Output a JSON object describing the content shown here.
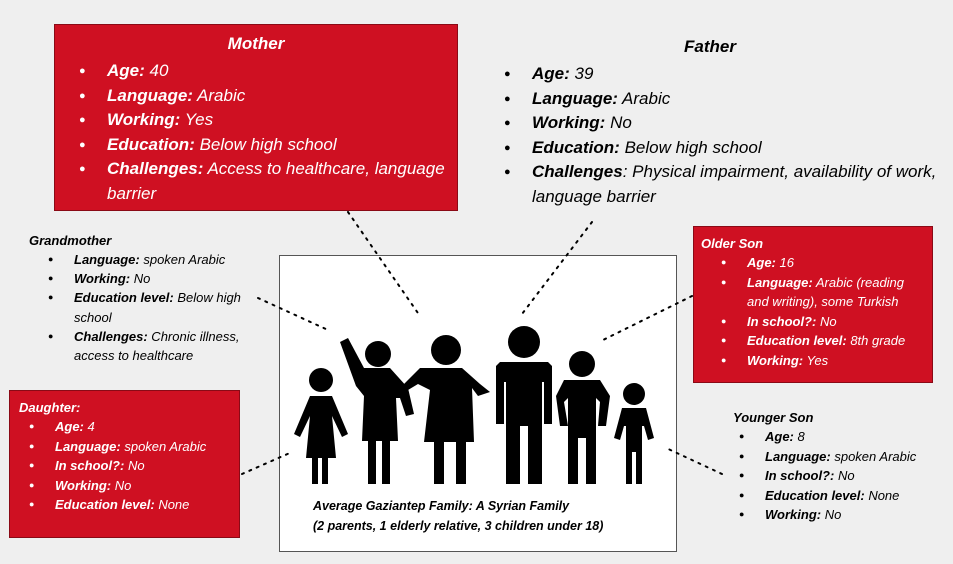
{
  "mother": {
    "title": "Mother",
    "items": [
      {
        "label": "Age:",
        "value": " 40"
      },
      {
        "label": "Language:",
        "value": " Arabic"
      },
      {
        "label": "Working:",
        "value": " Yes"
      },
      {
        "label": "Education:",
        "value": " Below high school"
      },
      {
        "label": "Challenges:",
        "value": " Access to healthcare, language barrier"
      }
    ]
  },
  "father": {
    "title": "Father",
    "items": [
      {
        "label": "Age:",
        "value": " 39"
      },
      {
        "label": "Language:",
        "value": " Arabic"
      },
      {
        "label": "Working:",
        "value": " No"
      },
      {
        "label": "Education:",
        "value": " Below high school"
      },
      {
        "label": "Challenges",
        "value": ": Physical impairment, availability of work, language barrier"
      }
    ]
  },
  "grandmother": {
    "title": "Grandmother",
    "items": [
      {
        "label": "Language:",
        "value": " spoken Arabic"
      },
      {
        "label": "Working:",
        "value": " No"
      },
      {
        "label": "Education level:",
        "value": " Below high school"
      },
      {
        "label": "Challenges:",
        "value": " Chronic illness, access to healthcare"
      }
    ]
  },
  "older_son": {
    "title": "Older Son",
    "items": [
      {
        "label": "Age:",
        "value": " 16"
      },
      {
        "label": "Language:",
        "value": " Arabic (reading and writing), some Turkish"
      },
      {
        "label": "In school?:",
        "value": " No"
      },
      {
        "label": "Education level:",
        "value": " 8th grade"
      },
      {
        "label": "Working:",
        "value": " Yes"
      }
    ]
  },
  "daughter": {
    "title": "Daughter:",
    "items": [
      {
        "label": "Age:",
        "value": " 4"
      },
      {
        "label": "Language:",
        "value": " spoken Arabic"
      },
      {
        "label": "In school?:",
        "value": " No"
      },
      {
        "label": "Working:",
        "value": " No"
      },
      {
        "label": "Education level:",
        "value": " None"
      }
    ]
  },
  "younger_son": {
    "title": "Younger Son",
    "items": [
      {
        "label": "Age:",
        "value": " 8"
      },
      {
        "label": "Language:",
        "value": " spoken Arabic"
      },
      {
        "label": "In school?:",
        "value": " No"
      },
      {
        "label": "Education level:",
        "value": " None"
      },
      {
        "label": "Working:",
        "value": " No"
      }
    ]
  },
  "center": {
    "caption_line1": "Average Gaziantep Family:  A Syrian Family",
    "caption_line2": "(2 parents, 1 elderly relative, 3 children under 18)"
  },
  "colors": {
    "box_red": "#cf1022",
    "background": "#efefef",
    "figure": "#000000"
  }
}
